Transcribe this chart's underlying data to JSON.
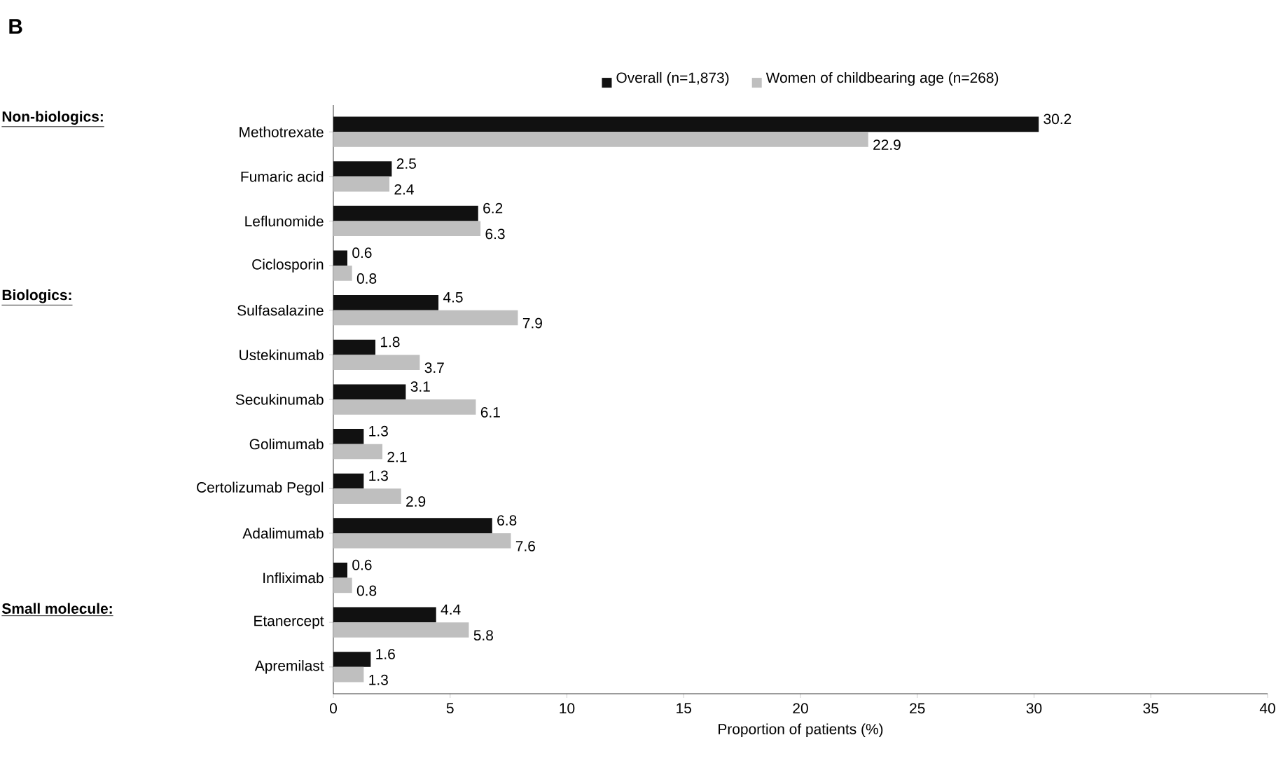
{
  "chart_data": {
    "type": "bar",
    "orientation": "horizontal",
    "title": "B",
    "xlabel": "Proportion of patients (%)",
    "categories": [
      "Methotrexate",
      "Fumaric acid",
      "Leflunomide",
      "Ciclosporin",
      "Sulfasalazine",
      "Ustekinumab",
      "Secukinumab",
      "Golimumab",
      "Certolizumab Pegol",
      "Adalimumab",
      "Infliximab",
      "Etanercept",
      "Apremilast"
    ],
    "series": [
      {
        "name": "Overall (n=1,873)",
        "color": "#111111",
        "values": [
          30.2,
          2.5,
          6.2,
          0.6,
          4.5,
          1.8,
          3.1,
          1.3,
          1.3,
          6.8,
          0.6,
          4.4,
          1.6
        ],
        "value_labels": [
          "30.2",
          "2.5",
          "6.2",
          "0.6",
          "4.5",
          "1.8",
          "3.1",
          "1.3",
          "1.3",
          "6.8",
          "0.6",
          "4.4",
          "1.6"
        ]
      },
      {
        "name": "Women of childbearing age (n=268)",
        "color": "#bfbfbf",
        "values": [
          22.9,
          2.4,
          6.3,
          0.8,
          7.9,
          3.7,
          6.1,
          2.1,
          2.9,
          7.6,
          0.8,
          5.8,
          1.3
        ],
        "value_labels": [
          "22.9",
          "2.4",
          "6.3",
          "0.8",
          "7.9",
          "3.7",
          "6.1",
          "2.1",
          "2.9",
          "7.6",
          "0.8",
          "5.8",
          "1.3"
        ]
      }
    ],
    "xlim": [
      0,
      40
    ],
    "xticks": [
      0,
      5,
      10,
      15,
      20,
      25,
      30,
      35,
      40
    ],
    "legend": "top",
    "grid": false,
    "annotations": [
      "**Non-biologics:**",
      "**Biologics:**",
      "**Small molecule:**"
    ]
  }
}
